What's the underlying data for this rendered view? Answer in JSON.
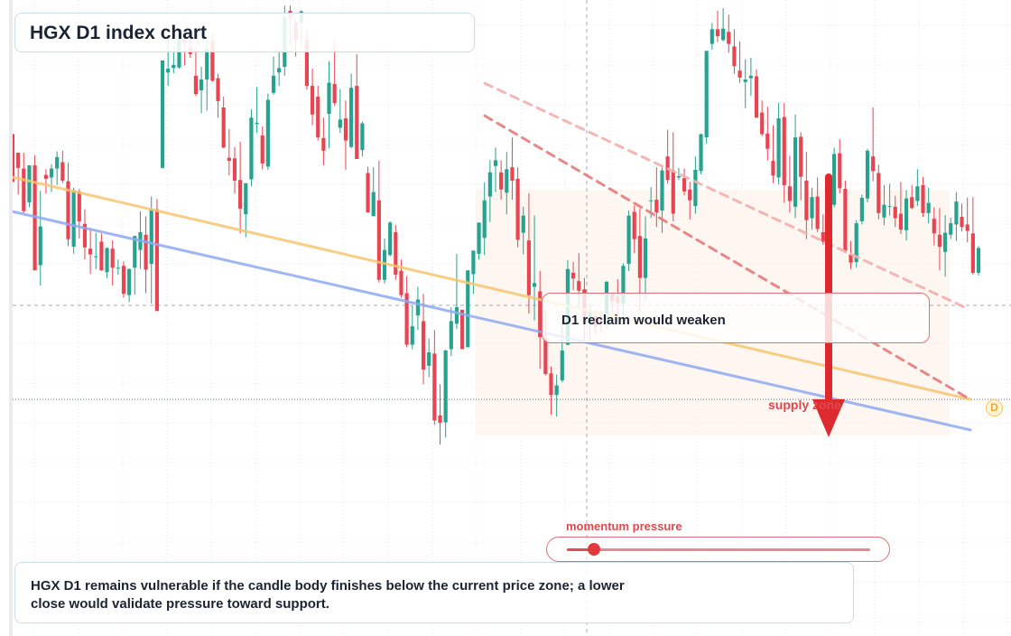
{
  "title": "HGX D1 index chart",
  "callout_text": "D1 reclaim would weaken",
  "supply_zone_label": "supply zone",
  "momentum_label": "momentum pressure",
  "momentum_level": 0.09,
  "note_text": "HGX D1 remains vulnerable if the candle body finishes below the current price zone; a lower close would validate pressure toward support.",
  "price_badge": "D",
  "colors": {
    "bull": "#26a28e",
    "bear": "#e84452",
    "support_line": "#8eaaf2",
    "resistance_line": "#f6c66f",
    "bearish_arrow": "#dc2a2e",
    "zone_fill": "#fdf4ef"
  },
  "chart_data": {
    "type": "candlestick",
    "title": "HGX D1 index chart",
    "price_range": [
      0,
      100
    ],
    "notes": "Values are relative price levels on a 0-100 scale; the chart prints no axis tick labels.",
    "candles": [
      [
        78.9,
        79,
        71.4,
        71.4
      ],
      [
        76,
        76,
        69.4,
        73.6
      ],
      [
        73.5,
        76,
        66.5,
        66.8
      ],
      [
        68.2,
        74,
        67.4,
        74
      ],
      [
        74,
        75.6,
        57.5,
        57.5
      ],
      [
        58.3,
        70,
        55.1,
        64.4
      ],
      [
        72.5,
        73.4,
        69.6,
        71.9
      ],
      [
        72.1,
        74.2,
        69.8,
        73.5
      ],
      [
        73.5,
        76.2,
        70.9,
        75.3
      ],
      [
        74.5,
        76.3,
        71.2,
        71.6
      ],
      [
        71.5,
        74.4,
        61.3,
        62.4
      ],
      [
        61.2,
        70.5,
        60.1,
        70.1
      ],
      [
        69.9,
        70.3,
        62.5,
        65.2
      ],
      [
        64.8,
        67.1,
        59.2,
        61.1
      ],
      [
        60.9,
        64,
        56.9,
        60
      ],
      [
        59.7,
        63.4,
        57.7,
        59.7
      ],
      [
        62,
        63.3,
        57.4,
        57.5
      ],
      [
        57.2,
        61.1,
        56.3,
        61
      ],
      [
        60.9,
        62.2,
        55.1,
        57.9
      ],
      [
        57.8,
        59.2,
        56.8,
        57.9
      ],
      [
        58.2,
        58.9,
        53.2,
        53.8
      ],
      [
        53.6,
        57.8,
        52.5,
        57.7
      ],
      [
        57.9,
        62.9,
        53.7,
        62.9
      ],
      [
        60.7,
        66.8,
        57.7,
        63.5
      ],
      [
        63.1,
        66,
        53.9,
        57.6
      ],
      [
        58.5,
        69.1,
        52.3,
        67.1
      ],
      [
        67.1,
        68.7,
        51.1,
        51.1
      ],
      [
        73.6,
        90.5,
        73.5,
        90.5
      ],
      [
        88.6,
        94.5,
        86.5,
        89.2
      ],
      [
        89.3,
        92.8,
        88.5,
        89.8
      ],
      [
        89.4,
        94.8,
        89.2,
        94.8
      ],
      [
        93.7,
        95.2,
        89.7,
        93.3
      ],
      [
        92.5,
        94.2,
        90.9,
        91.5
      ],
      [
        88.1,
        92.8,
        84.9,
        85.2
      ],
      [
        85.8,
        89.5,
        82.2,
        87.5
      ],
      [
        87.5,
        93.5,
        82.6,
        92.3
      ],
      [
        93.6,
        94.7,
        87.1,
        87.3
      ],
      [
        87.7,
        88.4,
        81.5,
        84.1
      ],
      [
        83.1,
        84.8,
        76.7,
        76.8
      ],
      [
        75.2,
        79.7,
        72.4,
        74.7
      ],
      [
        75.1,
        76.9,
        69.6,
        71.6
      ],
      [
        71.7,
        77.7,
        63.3,
        67.2
      ],
      [
        66.3,
        71.2,
        62.7,
        71.2
      ],
      [
        71.8,
        82.8,
        70.7,
        81.5
      ],
      [
        80.5,
        86.3,
        79.1,
        80.7
      ],
      [
        78.7,
        80.1,
        73.4,
        74.3
      ],
      [
        73.8,
        85.3,
        73.3,
        84.3
      ],
      [
        85.4,
        91.1,
        85.1,
        88.1
      ],
      [
        88.6,
        92.4,
        86.5,
        89.3
      ],
      [
        89.5,
        99.1,
        88.1,
        97.3
      ],
      [
        98.3,
        99.1,
        92.9,
        97.2
      ],
      [
        96.5,
        97.1,
        91.1,
        93.8
      ],
      [
        96.4,
        98.4,
        92.8,
        98.2
      ],
      [
        93.8,
        95.4,
        85.9,
        86.5
      ],
      [
        86.5,
        89.2,
        80.3,
        82
      ],
      [
        84.8,
        86.5,
        77.9,
        78.4
      ],
      [
        78.3,
        81.5,
        74,
        76.3
      ],
      [
        82.1,
        90.4,
        76.7,
        87
      ],
      [
        86.8,
        93.7,
        83.4,
        83.8
      ],
      [
        79.9,
        86,
        79.1,
        81.2
      ],
      [
        81.4,
        84.2,
        73.3,
        77.9
      ],
      [
        76.9,
        88.4,
        76.7,
        86.2
      ],
      [
        86.5,
        91.5,
        75,
        75
      ],
      [
        76.4,
        80.9,
        75.4,
        80.6
      ],
      [
        72.8,
        73.8,
        66.6,
        66.6
      ],
      [
        66,
        73.7,
        66.6,
        69.8
      ],
      [
        68.5,
        74.7,
        55.6,
        56
      ],
      [
        56,
        62.5,
        55.4,
        60.7
      ],
      [
        59.9,
        65.2,
        59.7,
        65
      ],
      [
        63.5,
        64.6,
        56,
        56.8
      ],
      [
        57.4,
        59.2,
        53.2,
        53.6
      ],
      [
        53.9,
        56.6,
        45.4,
        45.8
      ],
      [
        45.8,
        51.9,
        45.1,
        48.7
      ],
      [
        50.4,
        54.9,
        48.1,
        52.9
      ],
      [
        49.5,
        53.8,
        39.6,
        41.9
      ],
      [
        42.5,
        46.8,
        40.7,
        44.6
      ],
      [
        44.4,
        48.1,
        33.2,
        33.9
      ],
      [
        34.7,
        39.6,
        30.1,
        33.5
      ],
      [
        33.6,
        45,
        31.2,
        44.9
      ],
      [
        45.1,
        51.7,
        44,
        49.5
      ],
      [
        49.1,
        60.1,
        48.3,
        51.7
      ],
      [
        51.3,
        51.3,
        45.1,
        45.1
      ],
      [
        45.4,
        57.5,
        45.4,
        57.5
      ],
      [
        56.9,
        60.6,
        53.8,
        60.6
      ],
      [
        60.1,
        65,
        59.2,
        65
      ],
      [
        62.6,
        71.3,
        59.9,
        68.5
      ],
      [
        69.1,
        74.8,
        65.1,
        72.9
      ],
      [
        73.9,
        76.8,
        69.8,
        74.8
      ],
      [
        72.9,
        74.8,
        68.6,
        70.2
      ],
      [
        69.7,
        76.1,
        66.3,
        73.4
      ],
      [
        73.7,
        78.4,
        68.6,
        71.6
      ],
      [
        71.9,
        73.7,
        61.1,
        62.3
      ],
      [
        63.4,
        67.5,
        60,
        66.1
      ],
      [
        62.2,
        69.6,
        50.7,
        53.6
      ],
      [
        54.9,
        66.1,
        49.6,
        55.5
      ],
      [
        54.2,
        57.4,
        42,
        47
      ],
      [
        46.9,
        51.5,
        41,
        41.2
      ],
      [
        41.3,
        42.4,
        34.8,
        37.9
      ],
      [
        37.9,
        41.1,
        34.5,
        39.4
      ],
      [
        40.2,
        49.7,
        39.9,
        44.9
      ],
      [
        45.8,
        59.1,
        45.7,
        57.7
      ],
      [
        57.1,
        58.8,
        54.4,
        56.2
      ],
      [
        55.8,
        60.2,
        51.6,
        54.3
      ],
      [
        54.5,
        56.3,
        46.2,
        49.1
      ],
      [
        49.1,
        52.3,
        46.4,
        51.2
      ],
      [
        50.3,
        51.1,
        47.5,
        48.7
      ],
      [
        50,
        51.1,
        47.8,
        49.4
      ],
      [
        49.7,
        55.8,
        48.2,
        55.7
      ],
      [
        53.6,
        54,
        49.9,
        52.6
      ],
      [
        53.4,
        56.1,
        49.5,
        52.3
      ],
      [
        52.2,
        58.6,
        49.5,
        58.2
      ],
      [
        58.5,
        66.9,
        57.4,
        66.1
      ],
      [
        66.7,
        67.7,
        60.2,
        62.4
      ],
      [
        62.9,
        67.2,
        51,
        56.3
      ],
      [
        56.3,
        66,
        52.9,
        62.5
      ],
      [
        68.4,
        70.6,
        65.7,
        68.5
      ],
      [
        68.6,
        73.7,
        64.3,
        66.6
      ],
      [
        66.9,
        73.7,
        63.4,
        73.2
      ],
      [
        75.4,
        79.6,
        71.1,
        71.7
      ],
      [
        73.2,
        79.2,
        65.2,
        66.4
      ],
      [
        72.1,
        73.6,
        71.7,
        72.3
      ],
      [
        72,
        73.5,
        69.3,
        69.9
      ],
      [
        70.2,
        71.4,
        65.5,
        68.5
      ],
      [
        67.6,
        75.4,
        66.4,
        73.3
      ],
      [
        73.1,
        79,
        72.6,
        78.9
      ],
      [
        78.4,
        92,
        77.4,
        92
      ],
      [
        93.1,
        96.4,
        92.2,
        95.4
      ],
      [
        95.4,
        98.3,
        93.4,
        94.3
      ],
      [
        93.7,
        98.7,
        93.5,
        95.5
      ],
      [
        95,
        97.7,
        91.7,
        93.1
      ],
      [
        92.7,
        95.4,
        88.4,
        89.6
      ],
      [
        88.9,
        93.5,
        87,
        87.8
      ],
      [
        87.1,
        90.7,
        83,
        87.5
      ],
      [
        87.7,
        90.9,
        84.9,
        88.1
      ],
      [
        88,
        89.1,
        81.5,
        81.5
      ],
      [
        82.3,
        84.2,
        78.6,
        78.9
      ],
      [
        79,
        83.2,
        74.8,
        76.6
      ],
      [
        74.7,
        80.3,
        71.2,
        72.4
      ],
      [
        72.1,
        83.8,
        71,
        81.4
      ],
      [
        81.6,
        83.8,
        68.1,
        70.9
      ],
      [
        70.7,
        75.5,
        66.6,
        68.4
      ],
      [
        67.5,
        82,
        65.7,
        78.4
      ],
      [
        78.5,
        79.2,
        68.5,
        72.2
      ],
      [
        71.6,
        76.1,
        62.4,
        65.4
      ],
      [
        65.7,
        70.5,
        63.9,
        69
      ],
      [
        69.1,
        72.1,
        63.5,
        64
      ],
      [
        63.5,
        66.3,
        61.5,
        62
      ],
      [
        61.9,
        71.6,
        61.6,
        66.3
      ],
      [
        67.8,
        76.8,
        67.4,
        75.8
      ],
      [
        75.9,
        78.1,
        69.6,
        70.4
      ],
      [
        70.3,
        71.6,
        60.2,
        60.6
      ],
      [
        60,
        62.1,
        57.7,
        58.7
      ],
      [
        58.8,
        65.4,
        57.9,
        64.9
      ],
      [
        65.2,
        69.4,
        64.7,
        68.9
      ],
      [
        68.8,
        76.6,
        68.2,
        76.3
      ],
      [
        75.4,
        83.1,
        71.5,
        73.1
      ],
      [
        72.8,
        74.1,
        65.5,
        66.5
      ],
      [
        65.8,
        70.9,
        64.6,
        67.8
      ],
      [
        67.6,
        71.1,
        66.1,
        67.6
      ],
      [
        67.5,
        69.2,
        64.3,
        65.7
      ],
      [
        66.4,
        71.4,
        63.2,
        63.9
      ],
      [
        63.8,
        70.1,
        62.2,
        68.8
      ],
      [
        69,
        70.9,
        67.1,
        67.3
      ],
      [
        68.4,
        73.4,
        67.6,
        70.7
      ],
      [
        70.9,
        72.2,
        65.9,
        66.5
      ],
      [
        66.5,
        70.5,
        64.9,
        68.1
      ],
      [
        65.6,
        67.4,
        61.4,
        63.3
      ],
      [
        63.1,
        67.3,
        57.5,
        61.2
      ],
      [
        60.4,
        66.2,
        56.5,
        63.4
      ],
      [
        63.1,
        65.8,
        62.4,
        64.9
      ],
      [
        64.7,
        69.8,
        62.1,
        68.3
      ],
      [
        65.9,
        68,
        63.6,
        64.3
      ],
      [
        64.7,
        68.9,
        61.9,
        63.7
      ],
      [
        63.3,
        69,
        56.8,
        57.1
      ],
      [
        57.1,
        61.3,
        56.7,
        61
      ]
    ],
    "lines": [
      {
        "name": "resistance",
        "color": "#f6c66f",
        "from": [
          12,
          72.2
        ],
        "to": [
          1075,
          37.2
        ]
      },
      {
        "name": "support",
        "color": "#8eaaf2",
        "from": [
          12,
          66.8
        ],
        "to": [
          1075,
          32.4
        ]
      },
      {
        "name": "upper dashed projection",
        "color": "#f2b0ae",
        "dashed": true,
        "from": [
          537,
          86.9
        ],
        "to": [
          1070,
          51.6
        ]
      },
      {
        "name": "lower dashed projection",
        "color": "#e57d7c",
        "dashed": true,
        "from": [
          537,
          81.8
        ],
        "to": [
          1070,
          37.6
        ]
      }
    ],
    "current_price": 37.2
  }
}
